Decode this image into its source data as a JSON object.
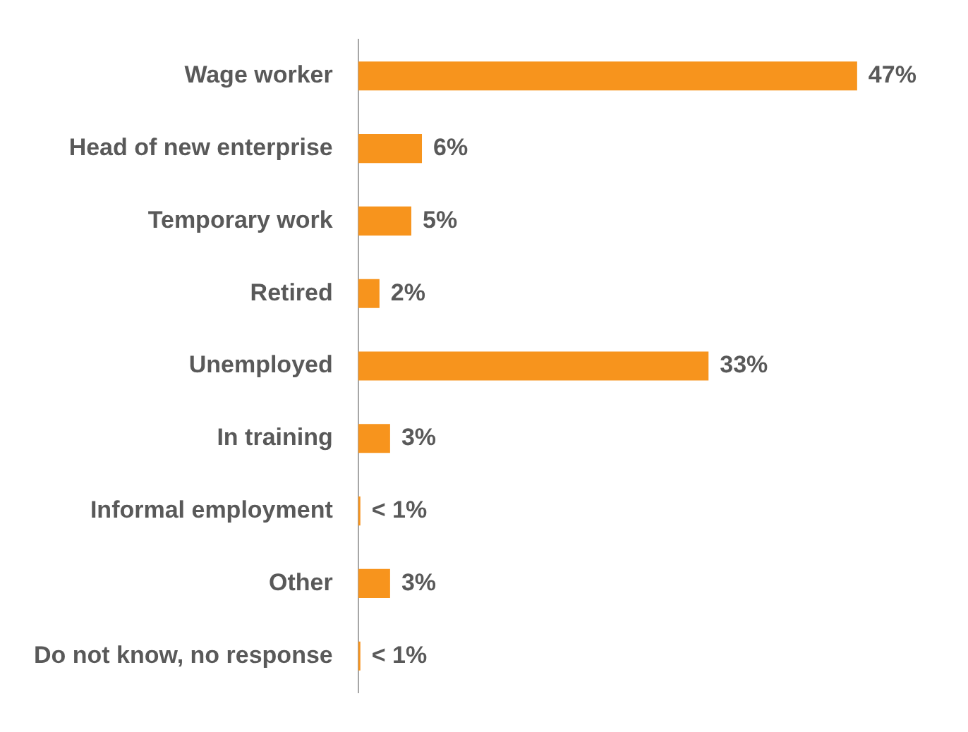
{
  "chart_data": {
    "type": "bar",
    "orientation": "horizontal",
    "categories": [
      "Wage worker",
      "Head of new enterprise",
      "Temporary work",
      "Retired",
      "Unemployed",
      "In training",
      "Informal employment",
      "Other",
      "Do not know, no response"
    ],
    "values": [
      47,
      6,
      5,
      2,
      33,
      3,
      0.2,
      3,
      0.2
    ],
    "value_labels": [
      "47%",
      "6%",
      "5%",
      "2%",
      "33%",
      "3%",
      "< 1%",
      "3%",
      "< 1%"
    ],
    "color": "#f7941d",
    "tick_labels": "y",
    "legend": false
  }
}
